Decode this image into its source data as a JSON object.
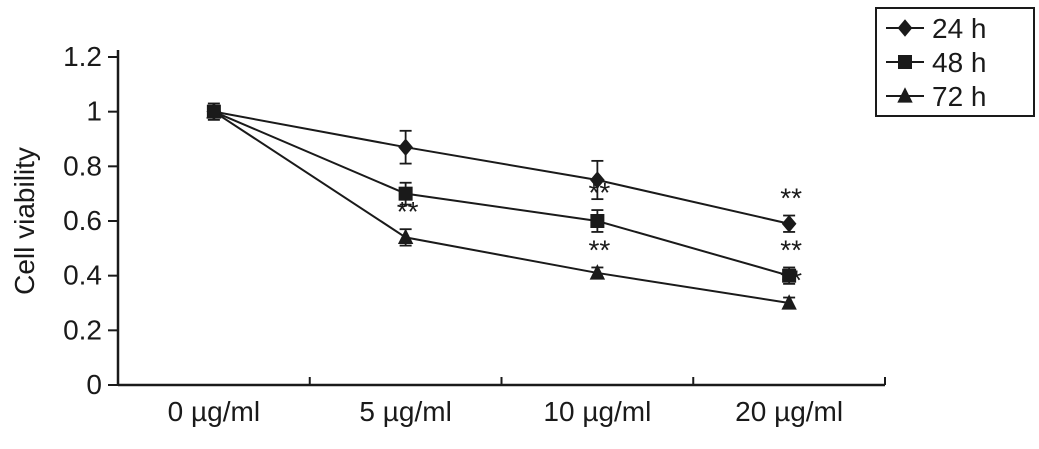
{
  "chart_data": {
    "type": "line",
    "title": "",
    "xlabel": "",
    "ylabel": "Cell viability",
    "categories": [
      "0 µg/ml",
      "5 µg/ml",
      "10 µg/ml",
      "20 µg/ml"
    ],
    "ylim": [
      0,
      1.2
    ],
    "yticks": [
      0,
      0.2,
      0.4,
      0.6,
      0.8,
      1,
      1.2
    ],
    "ytick_labels": [
      "0",
      "0.2",
      "0.4",
      "0.6",
      "0.8",
      "1",
      "1.2"
    ],
    "grid": false,
    "legend_position": "top-right",
    "line_color": "#1a1a1a",
    "marker_color": "#1a1a1a",
    "significance_symbol": "**",
    "series": [
      {
        "name": "24 h",
        "marker": "diamond",
        "values": [
          1.0,
          0.87,
          0.75,
          0.59
        ],
        "errors": [
          0.03,
          0.06,
          0.07,
          0.03
        ],
        "significance": [
          "",
          "",
          "",
          "**"
        ]
      },
      {
        "name": "48 h",
        "marker": "square",
        "values": [
          1.0,
          0.7,
          0.6,
          0.4
        ],
        "errors": [
          0.02,
          0.04,
          0.04,
          0.03
        ],
        "significance": [
          "",
          "",
          "**",
          "**"
        ]
      },
      {
        "name": "72 h",
        "marker": "triangle",
        "values": [
          1.0,
          0.54,
          0.41,
          0.3
        ],
        "errors": [
          0.02,
          0.03,
          0.02,
          0.02
        ],
        "significance": [
          "",
          "**",
          "**",
          "**"
        ]
      }
    ]
  }
}
